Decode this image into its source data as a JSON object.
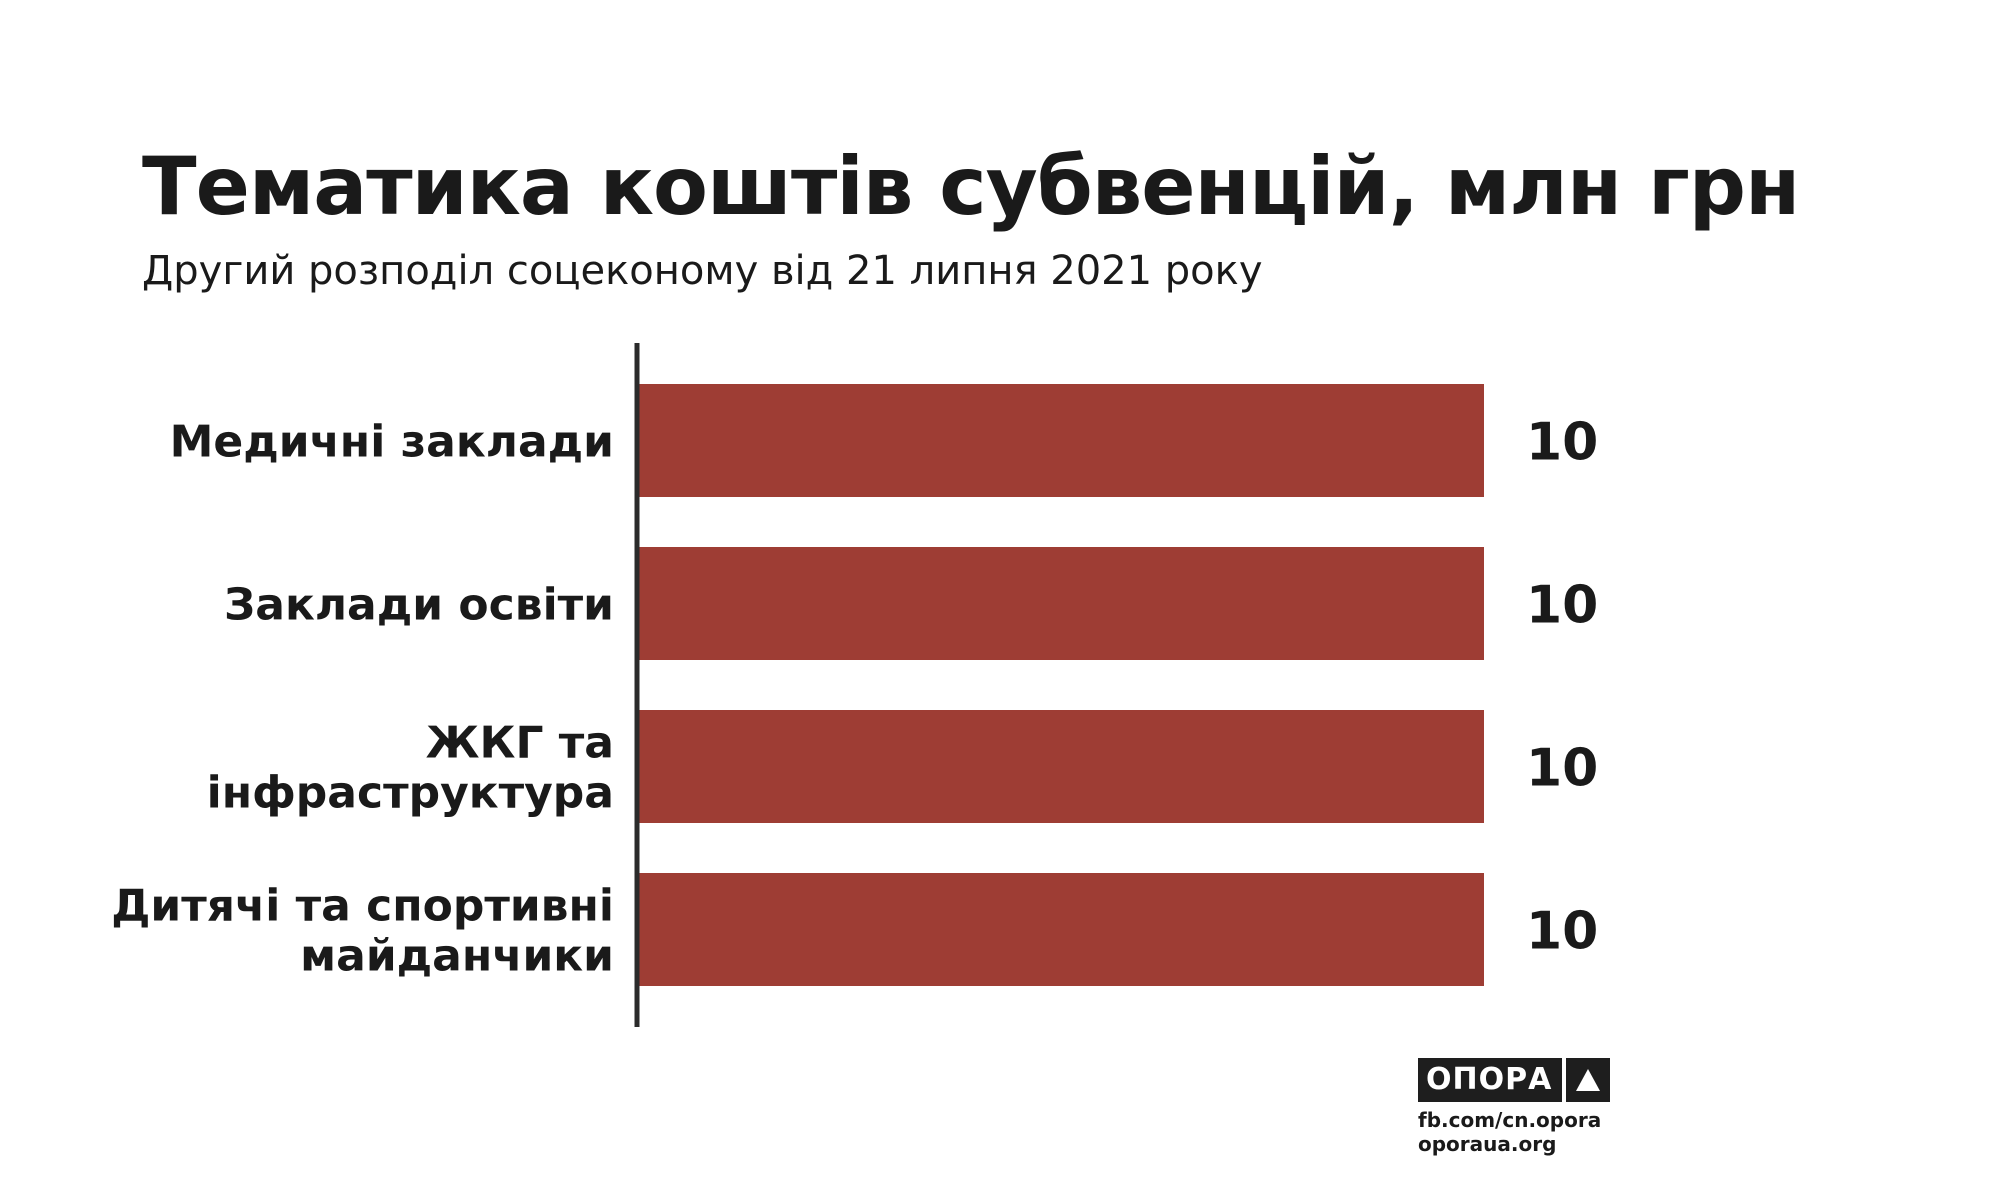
{
  "chart_data": {
    "type": "bar",
    "orientation": "horizontal",
    "title": "Тематика коштів субвенцій, млн грн",
    "subtitle": "Другий розподіл соцекономy від 21 липня 2021 року",
    "categories": [
      [
        "Медичні заклади"
      ],
      [
        "Заклади освіти"
      ],
      [
        "ЖКГ та",
        "інфраструктура"
      ],
      [
        "Дитячі та спортивні",
        "майданчики"
      ]
    ],
    "values": [
      10,
      10,
      10,
      10
    ],
    "value_labels": [
      "10",
      "10",
      "10",
      "10"
    ],
    "xlim": [
      0,
      10
    ],
    "grid": false,
    "colors": {
      "bar": "#9e3d34",
      "axis": "#2b2b2b"
    }
  },
  "branding": {
    "logo_text": "ОПОРА",
    "logo_icon": "triangle-icon",
    "facebook": "fb.com/cn.opora",
    "website": "oporaua.org"
  }
}
